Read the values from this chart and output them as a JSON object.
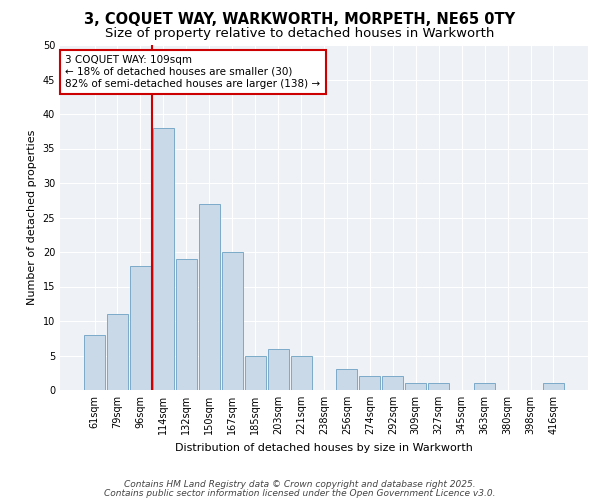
{
  "title1": "3, COQUET WAY, WARKWORTH, MORPETH, NE65 0TY",
  "title2": "Size of property relative to detached houses in Warkworth",
  "xlabel": "Distribution of detached houses by size in Warkworth",
  "ylabel": "Number of detached properties",
  "bar_labels": [
    "61sqm",
    "79sqm",
    "96sqm",
    "114sqm",
    "132sqm",
    "150sqm",
    "167sqm",
    "185sqm",
    "203sqm",
    "221sqm",
    "238sqm",
    "256sqm",
    "274sqm",
    "292sqm",
    "309sqm",
    "327sqm",
    "345sqm",
    "363sqm",
    "380sqm",
    "398sqm",
    "416sqm"
  ],
  "bar_values": [
    8,
    11,
    18,
    38,
    19,
    27,
    20,
    5,
    6,
    5,
    0,
    3,
    2,
    2,
    1,
    1,
    0,
    1,
    0,
    0,
    1
  ],
  "bar_color": "#c9d9e8",
  "bar_edgecolor": "#7aaac8",
  "vline_color": "#cc0000",
  "vline_x": 2.5,
  "annotation_line1": "3 COQUET WAY: 109sqm",
  "annotation_line2": "← 18% of detached houses are smaller (30)",
  "annotation_line3": "82% of semi-detached houses are larger (138) →",
  "annotation_box_color": "#ffffff",
  "annotation_box_edgecolor": "#cc0000",
  "ylim": [
    0,
    50
  ],
  "yticks": [
    0,
    5,
    10,
    15,
    20,
    25,
    30,
    35,
    40,
    45,
    50
  ],
  "background_color": "#eef2f7",
  "grid_color": "#ffffff",
  "footer_line1": "Contains HM Land Registry data © Crown copyright and database right 2025.",
  "footer_line2": "Contains public sector information licensed under the Open Government Licence v3.0.",
  "title1_fontsize": 10.5,
  "title2_fontsize": 9.5,
  "annotation_fontsize": 7.5,
  "footer_fontsize": 6.5,
  "xlabel_fontsize": 8,
  "ylabel_fontsize": 8,
  "tick_fontsize": 7
}
